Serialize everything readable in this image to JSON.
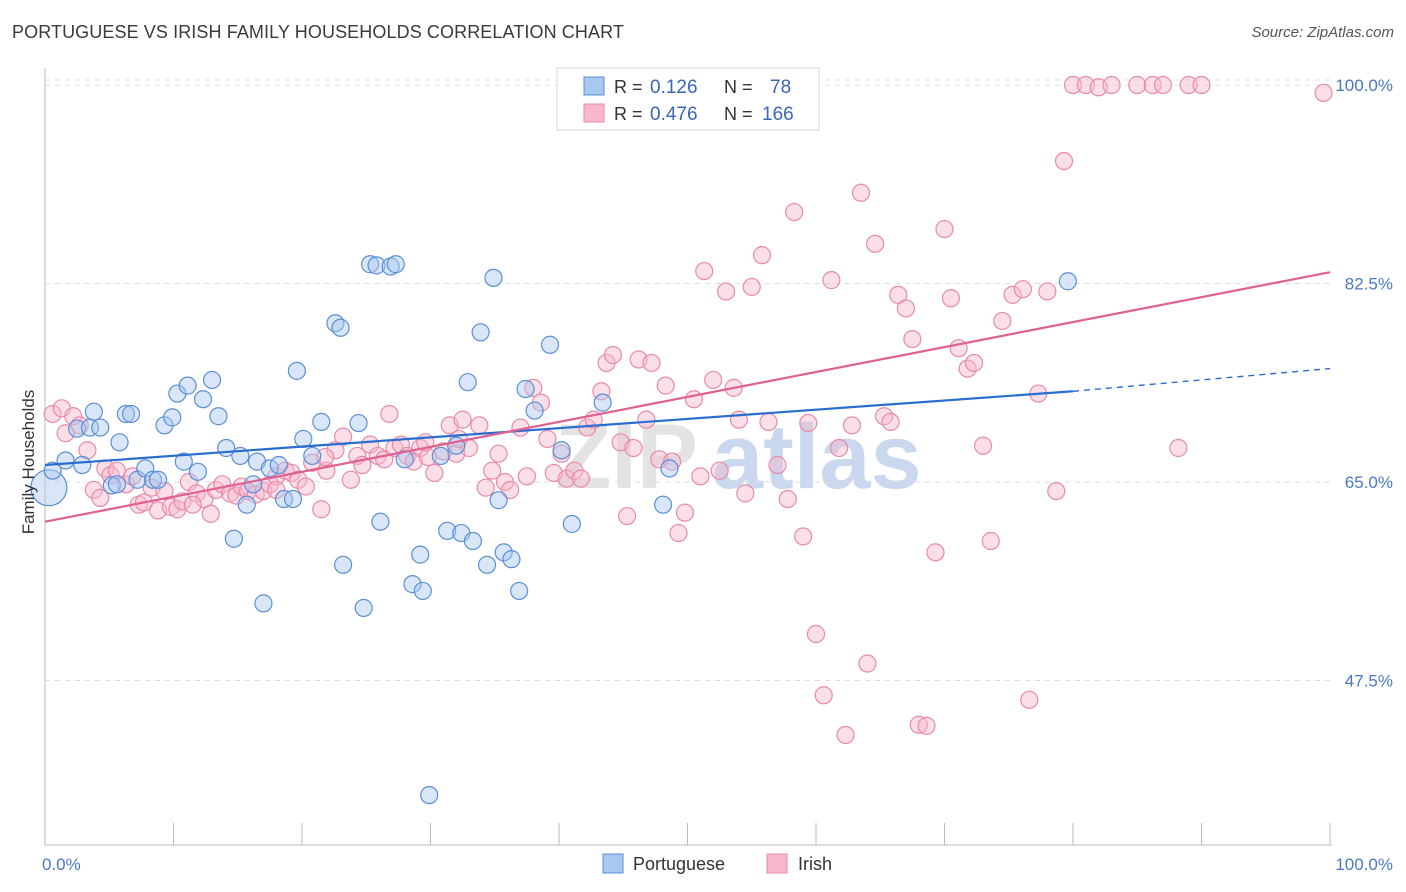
{
  "title": "PORTUGUESE VS IRISH FAMILY HOUSEHOLDS CORRELATION CHART",
  "source": "Source: ZipAtlas.com",
  "watermark": {
    "zip": "ZIP",
    "atlas": "atlas"
  },
  "chart_data": {
    "type": "scatter",
    "xlabel": "",
    "ylabel": "Family Households",
    "xlim": [
      0,
      100
    ],
    "ylim": [
      33,
      101.5
    ],
    "x_tick_labels": [
      {
        "value": 0,
        "label": "0.0%"
      },
      {
        "value": 100,
        "label": "100.0%"
      }
    ],
    "y_ticks": [
      {
        "value": 100,
        "label": "100.0%"
      },
      {
        "value": 82.5,
        "label": "82.5%"
      },
      {
        "value": 65,
        "label": "65.0%"
      },
      {
        "value": 47.5,
        "label": "47.5%"
      }
    ],
    "grid": true,
    "legend_position": "top-center",
    "colors": {
      "portuguese_fill": "#a8c8f0",
      "portuguese_stroke": "#5b8fd6",
      "portuguese_line": "#2a6dd0",
      "irish_fill": "#f7b8cc",
      "irish_stroke": "#e88aaa",
      "irish_line": "#e0608f",
      "tick": "#4a78c8"
    },
    "stats_legend": [
      {
        "series": "Portuguese",
        "r_label": "R =",
        "r": "0.126",
        "n_label": "N =",
        "n": "78"
      },
      {
        "series": "Irish",
        "r_label": "R =",
        "r": "0.476",
        "n_label": "N =",
        "n": "166"
      }
    ],
    "series": [
      {
        "name": "Portuguese",
        "trend": {
          "x0": 0,
          "y0": 66.5,
          "x1": 80,
          "y1": 73.0,
          "dash_to_x": 100,
          "dash_to_y": 75.0
        },
        "points": [
          [
            0.3,
            64.5,
            18
          ],
          [
            0.6,
            66.0,
            0
          ],
          [
            1.6,
            66.9,
            0
          ],
          [
            2.5,
            69.7,
            0
          ],
          [
            2.9,
            66.5,
            0
          ],
          [
            3.5,
            69.8,
            0
          ],
          [
            3.8,
            71.2,
            0
          ],
          [
            4.3,
            69.8,
            0
          ],
          [
            5.2,
            64.7,
            0
          ],
          [
            5.6,
            64.8,
            0
          ],
          [
            5.8,
            68.5,
            0
          ],
          [
            6.3,
            71.0,
            0
          ],
          [
            6.7,
            71.0,
            0
          ],
          [
            7.2,
            65.2,
            0
          ],
          [
            7.8,
            66.2,
            0
          ],
          [
            8.4,
            65.2,
            0
          ],
          [
            8.8,
            65.2,
            0
          ],
          [
            9.3,
            70.0,
            0
          ],
          [
            9.9,
            70.7,
            0
          ],
          [
            10.3,
            72.8,
            0
          ],
          [
            10.8,
            66.8,
            0
          ],
          [
            11.1,
            73.5,
            0
          ],
          [
            11.9,
            65.9,
            0
          ],
          [
            12.3,
            72.3,
            0
          ],
          [
            13.0,
            74.0,
            0
          ],
          [
            13.5,
            70.8,
            0
          ],
          [
            14.1,
            68.0,
            0
          ],
          [
            14.7,
            60.0,
            0
          ],
          [
            15.2,
            67.3,
            0
          ],
          [
            15.7,
            63.0,
            0
          ],
          [
            16.2,
            64.8,
            0
          ],
          [
            16.5,
            66.8,
            0
          ],
          [
            17.0,
            54.3,
            0
          ],
          [
            17.5,
            66.2,
            0
          ],
          [
            18.2,
            66.5,
            0
          ],
          [
            18.6,
            63.5,
            0
          ],
          [
            19.3,
            63.5,
            0
          ],
          [
            19.6,
            74.8,
            0
          ],
          [
            20.1,
            68.8,
            0
          ],
          [
            20.8,
            67.3,
            0
          ],
          [
            21.5,
            70.3,
            0
          ],
          [
            22.6,
            79.0,
            0
          ],
          [
            23.0,
            78.6,
            0
          ],
          [
            23.2,
            57.7,
            0
          ],
          [
            24.4,
            70.2,
            0
          ],
          [
            24.8,
            53.9,
            0
          ],
          [
            25.3,
            84.2,
            0
          ],
          [
            25.8,
            84.1,
            0
          ],
          [
            26.1,
            61.5,
            0
          ],
          [
            26.9,
            84.0,
            0
          ],
          [
            27.3,
            84.2,
            0
          ],
          [
            28.0,
            67.0,
            0
          ],
          [
            28.6,
            56.0,
            0
          ],
          [
            29.2,
            58.6,
            0
          ],
          [
            29.4,
            55.4,
            0
          ],
          [
            29.9,
            37.4,
            0
          ],
          [
            30.8,
            67.3,
            0
          ],
          [
            31.3,
            60.7,
            0
          ],
          [
            32.0,
            68.2,
            0
          ],
          [
            32.4,
            60.5,
            0
          ],
          [
            32.9,
            73.8,
            0
          ],
          [
            33.3,
            59.8,
            0
          ],
          [
            33.9,
            78.2,
            0
          ],
          [
            34.4,
            57.7,
            0
          ],
          [
            34.9,
            83.0,
            0
          ],
          [
            35.3,
            63.4,
            0
          ],
          [
            35.7,
            58.8,
            0
          ],
          [
            36.3,
            58.2,
            0
          ],
          [
            36.9,
            55.4,
            0
          ],
          [
            37.4,
            73.2,
            0
          ],
          [
            38.1,
            71.3,
            0
          ],
          [
            39.3,
            77.1,
            0
          ],
          [
            40.2,
            67.8,
            0
          ],
          [
            41.0,
            61.3,
            0
          ],
          [
            43.4,
            72.0,
            0
          ],
          [
            48.1,
            63.0,
            0
          ],
          [
            48.6,
            66.2,
            0
          ],
          [
            79.6,
            82.7,
            0
          ]
        ]
      },
      {
        "name": "Irish",
        "trend": {
          "x0": 0,
          "y0": 61.5,
          "x1": 100,
          "y1": 83.5
        },
        "points": [
          [
            0.6,
            71.0,
            0
          ],
          [
            1.3,
            71.5,
            0
          ],
          [
            1.6,
            69.3,
            0
          ],
          [
            2.2,
            70.8,
            0
          ],
          [
            2.7,
            70.0,
            0
          ],
          [
            3.3,
            67.8,
            0
          ],
          [
            3.8,
            64.3,
            0
          ],
          [
            4.3,
            63.6,
            0
          ],
          [
            4.7,
            66.2,
            0
          ],
          [
            5.1,
            65.6,
            0
          ],
          [
            5.6,
            66.0,
            0
          ],
          [
            6.3,
            64.8,
            0
          ],
          [
            6.8,
            65.5,
            0
          ],
          [
            7.3,
            63.0,
            0
          ],
          [
            7.7,
            63.2,
            0
          ],
          [
            8.3,
            64.5,
            0
          ],
          [
            8.8,
            62.5,
            0
          ],
          [
            9.3,
            64.2,
            0
          ],
          [
            9.8,
            62.8,
            0
          ],
          [
            10.3,
            62.6,
            0
          ],
          [
            10.7,
            63.3,
            0
          ],
          [
            11.2,
            65.0,
            0
          ],
          [
            11.8,
            64.0,
            0
          ],
          [
            12.4,
            63.5,
            0
          ],
          [
            12.9,
            62.2,
            0
          ],
          [
            13.3,
            64.3,
            0
          ],
          [
            13.8,
            64.8,
            0
          ],
          [
            14.4,
            64.0,
            0
          ],
          [
            14.9,
            63.8,
            0
          ],
          [
            15.3,
            64.6,
            0
          ],
          [
            15.8,
            64.2,
            0
          ],
          [
            16.4,
            63.9,
            0
          ],
          [
            17.0,
            64.2,
            0
          ],
          [
            17.5,
            64.8,
            0
          ],
          [
            18.0,
            65.5,
            0
          ],
          [
            18.7,
            66.0,
            0
          ],
          [
            19.2,
            65.8,
            0
          ],
          [
            19.7,
            65.2,
            0
          ],
          [
            20.3,
            64.6,
            0
          ],
          [
            20.8,
            66.7,
            0
          ],
          [
            21.5,
            62.6,
            0
          ],
          [
            21.9,
            66.0,
            0
          ],
          [
            22.6,
            67.8,
            0
          ],
          [
            23.2,
            69.0,
            0
          ],
          [
            23.8,
            65.2,
            0
          ],
          [
            24.3,
            67.3,
            0
          ],
          [
            24.7,
            66.5,
            0
          ],
          [
            25.3,
            68.3,
            0
          ],
          [
            25.9,
            67.3,
            0
          ],
          [
            26.4,
            67.0,
            0
          ],
          [
            26.8,
            71.0,
            0
          ],
          [
            27.2,
            68.0,
            0
          ],
          [
            27.7,
            68.3,
            0
          ],
          [
            28.2,
            67.3,
            0
          ],
          [
            28.7,
            66.8,
            0
          ],
          [
            29.2,
            68.0,
            0
          ],
          [
            29.8,
            67.2,
            0
          ],
          [
            30.3,
            65.8,
            0
          ],
          [
            31.0,
            67.7,
            0
          ],
          [
            31.5,
            70.0,
            0
          ],
          [
            32.0,
            67.5,
            0
          ],
          [
            32.5,
            70.5,
            0
          ],
          [
            33.0,
            68.0,
            0
          ],
          [
            33.8,
            70.0,
            0
          ],
          [
            34.3,
            64.5,
            0
          ],
          [
            34.8,
            66.0,
            0
          ],
          [
            35.3,
            67.5,
            0
          ],
          [
            35.8,
            65.0,
            0
          ],
          [
            36.2,
            64.3,
            0
          ],
          [
            37.0,
            69.8,
            0
          ],
          [
            37.5,
            65.5,
            0
          ],
          [
            38.0,
            73.3,
            0
          ],
          [
            38.6,
            72.0,
            0
          ],
          [
            39.1,
            68.8,
            0
          ],
          [
            39.6,
            65.8,
            0
          ],
          [
            40.2,
            67.5,
            0
          ],
          [
            40.6,
            65.3,
            0
          ],
          [
            41.2,
            66.0,
            0
          ],
          [
            41.7,
            65.3,
            0
          ],
          [
            42.2,
            69.8,
            0
          ],
          [
            42.7,
            70.5,
            0
          ],
          [
            43.3,
            73.0,
            0
          ],
          [
            43.7,
            75.5,
            0
          ],
          [
            44.2,
            76.2,
            0
          ],
          [
            44.8,
            68.5,
            0
          ],
          [
            45.3,
            62.0,
            0
          ],
          [
            45.8,
            68.0,
            0
          ],
          [
            46.2,
            75.8,
            0
          ],
          [
            46.8,
            70.5,
            0
          ],
          [
            47.2,
            75.5,
            0
          ],
          [
            47.8,
            67.0,
            0
          ],
          [
            48.3,
            73.5,
            0
          ],
          [
            48.8,
            66.8,
            0
          ],
          [
            49.3,
            60.5,
            0
          ],
          [
            49.8,
            62.3,
            0
          ],
          [
            50.5,
            72.3,
            0
          ],
          [
            51.0,
            65.5,
            0
          ],
          [
            51.3,
            83.6,
            0
          ],
          [
            52.0,
            74.0,
            0
          ],
          [
            52.5,
            66.0,
            0
          ],
          [
            53.0,
            81.8,
            0
          ],
          [
            53.6,
            73.3,
            0
          ],
          [
            54.0,
            70.5,
            0
          ],
          [
            54.5,
            64.0,
            0
          ],
          [
            55.0,
            82.2,
            0
          ],
          [
            55.8,
            85.0,
            0
          ],
          [
            56.3,
            70.3,
            0
          ],
          [
            57.0,
            66.5,
            0
          ],
          [
            57.8,
            63.5,
            0
          ],
          [
            58.3,
            88.8,
            0
          ],
          [
            59.0,
            60.2,
            0
          ],
          [
            59.4,
            70.2,
            0
          ],
          [
            60.0,
            51.6,
            0
          ],
          [
            60.6,
            46.2,
            0
          ],
          [
            61.2,
            82.8,
            0
          ],
          [
            61.8,
            68.0,
            0
          ],
          [
            62.3,
            42.7,
            0
          ],
          [
            62.8,
            70.0,
            0
          ],
          [
            63.5,
            90.5,
            0
          ],
          [
            64.0,
            49.0,
            0
          ],
          [
            64.6,
            86.0,
            0
          ],
          [
            65.3,
            70.8,
            0
          ],
          [
            65.8,
            70.3,
            0
          ],
          [
            66.4,
            81.5,
            0
          ],
          [
            67.0,
            80.3,
            0
          ],
          [
            67.5,
            77.6,
            0
          ],
          [
            68.0,
            43.6,
            0
          ],
          [
            68.6,
            43.5,
            0
          ],
          [
            69.3,
            58.8,
            0
          ],
          [
            70.0,
            87.3,
            0
          ],
          [
            70.5,
            81.2,
            0
          ],
          [
            71.1,
            76.8,
            0
          ],
          [
            71.8,
            75.0,
            0
          ],
          [
            72.3,
            75.5,
            0
          ],
          [
            73.0,
            68.2,
            0
          ],
          [
            73.6,
            59.8,
            0
          ],
          [
            74.5,
            79.2,
            0
          ],
          [
            75.3,
            81.5,
            0
          ],
          [
            76.1,
            82.0,
            0
          ],
          [
            76.6,
            45.8,
            0
          ],
          [
            77.3,
            72.8,
            0
          ],
          [
            78.0,
            81.8,
            0
          ],
          [
            78.7,
            64.2,
            0
          ],
          [
            79.3,
            93.3,
            0
          ],
          [
            80.0,
            100.0,
            0
          ],
          [
            81.0,
            100.0,
            0
          ],
          [
            82.0,
            99.8,
            0
          ],
          [
            83.0,
            100.0,
            0
          ],
          [
            85.0,
            100.0,
            0
          ],
          [
            86.2,
            100.0,
            0
          ],
          [
            87.0,
            100.0,
            0
          ],
          [
            88.2,
            68.0,
            0
          ],
          [
            89.0,
            100.0,
            0
          ],
          [
            90.0,
            100.0,
            0
          ],
          [
            99.5,
            99.3,
            0
          ],
          [
            32.2,
            68.8,
            0
          ],
          [
            29.6,
            68.5,
            0
          ],
          [
            21.8,
            67.2,
            0
          ],
          [
            18.0,
            64.3,
            0
          ],
          [
            11.5,
            63.0,
            0
          ]
        ]
      }
    ],
    "bottom_legend": [
      {
        "name": "Portuguese"
      },
      {
        "name": "Irish"
      }
    ]
  }
}
